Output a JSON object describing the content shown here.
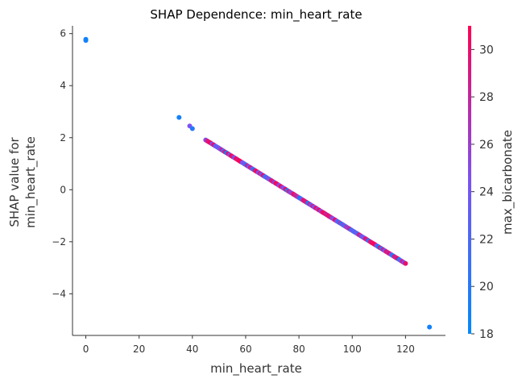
{
  "chart_data": {
    "type": "scatter",
    "title": "SHAP Dependence: min_heart_rate",
    "xlabel": "min_heart_rate",
    "ylabel_lines": [
      "SHAP value for",
      "min_heart_rate"
    ],
    "xlim": [
      -5,
      135
    ],
    "ylim": [
      -5.6,
      6.3
    ],
    "x_ticks": [
      0,
      20,
      40,
      60,
      80,
      100,
      120
    ],
    "y_ticks": [
      -4,
      -2,
      0,
      2,
      4,
      6
    ],
    "y_tick_labels": [
      "−4",
      "−2",
      "0",
      "2",
      "4",
      "6"
    ],
    "colorbar": {
      "label": "max_bicarbonate",
      "range": [
        18,
        31
      ],
      "ticks": [
        18,
        20,
        22,
        24,
        26,
        28,
        30
      ],
      "colors": [
        "#008afb",
        "#7c52f2",
        "#ff0052"
      ]
    },
    "fit_line": {
      "slope": -0.0633,
      "intercept": 4.76
    },
    "outliers": [
      {
        "x": 0,
        "y": 5.78,
        "c": 18.5
      },
      {
        "x": 0,
        "y": 5.74,
        "c": 19.0
      },
      {
        "x": 35,
        "y": 2.78,
        "c": 19.0
      },
      {
        "x": 39,
        "y": 2.45,
        "c": 24.5
      },
      {
        "x": 40,
        "y": 2.35,
        "c": 20.0
      },
      {
        "x": 129,
        "y": -5.28,
        "c": 19.0
      }
    ],
    "dense_range": [
      45,
      120
    ]
  }
}
